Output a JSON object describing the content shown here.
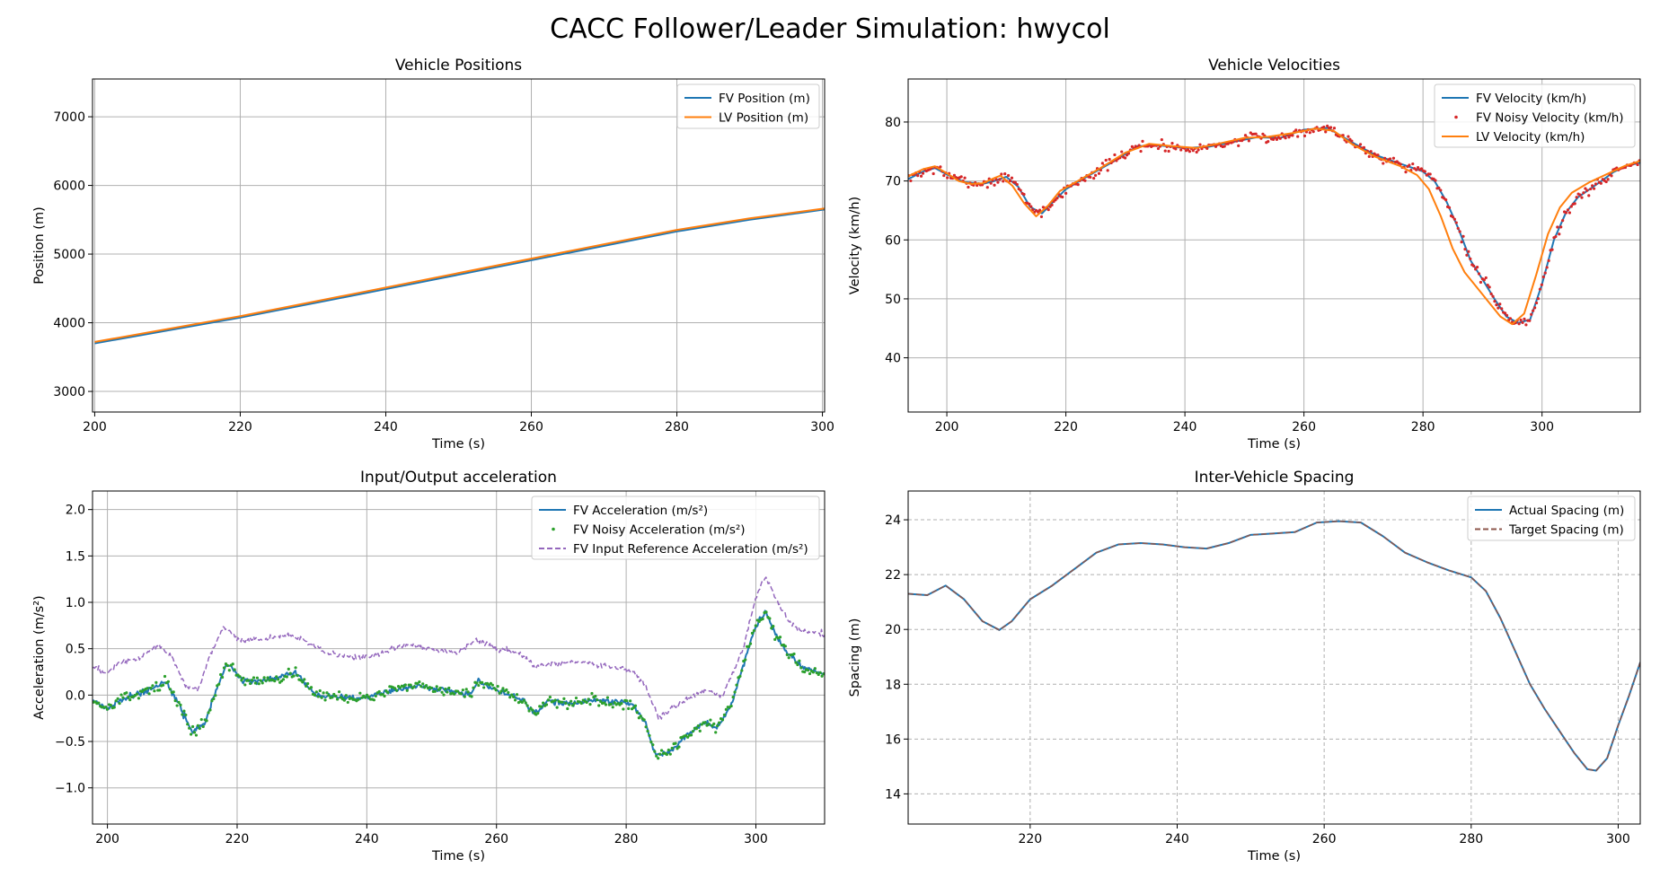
{
  "figure": {
    "title": "CACC Follower/Leader Simulation: hwycol"
  },
  "colors": {
    "blue": "#1f77b4",
    "orange": "#ff7f0e",
    "red": "#d62728",
    "green": "#2ca02c",
    "purple": "#9467bd",
    "brown": "#8c564b",
    "grid": "#b0b0b0"
  },
  "chart_data": [
    {
      "type": "line",
      "title": "Vehicle Positions",
      "xlabel": "Time (s)",
      "ylabel": "Position (m)",
      "xlim": [
        199.7,
        300.3
      ],
      "ylim": [
        2700,
        7550
      ],
      "xticks": [
        200,
        220,
        240,
        260,
        280,
        300
      ],
      "yticks": [
        3000,
        4000,
        5000,
        6000,
        7000
      ],
      "grid": "solid",
      "legend": "top-right",
      "series": [
        {
          "name": "FV Position (m)",
          "color": "#1f77b4",
          "style": "solid",
          "x": [
            200,
            220,
            240,
            260,
            280,
            290,
            300.3
          ],
          "y": [
            3700,
            4075,
            4490,
            4910,
            5330,
            5500,
            5650
          ]
        },
        {
          "name": "LV Position (m)",
          "color": "#ff7f0e",
          "style": "solid",
          "x": [
            200,
            220,
            240,
            260,
            280,
            290,
            300.3
          ],
          "y": [
            3721,
            4096,
            4513,
            4934,
            5352,
            5520,
            5664
          ]
        }
      ]
    },
    {
      "type": "line",
      "title": "Vehicle Velocities",
      "xlabel": "Time (s)",
      "ylabel": "Velocity (km/h)",
      "xlim": [
        193.5,
        316.5
      ],
      "ylim": [
        30.8,
        87.3
      ],
      "xticks": [
        200,
        220,
        240,
        260,
        280,
        300
      ],
      "yticks": [
        40,
        50,
        60,
        70,
        80
      ],
      "grid": "solid",
      "legend": "top-right",
      "series": [
        {
          "name": "FV Velocity (km/h)",
          "color": "#1f77b4",
          "style": "solid",
          "x": [
            193.5,
            196,
            198,
            200,
            203,
            206,
            208,
            210,
            212,
            214,
            216,
            218,
            220,
            224,
            228,
            232,
            236,
            240,
            244,
            248,
            252,
            256,
            260,
            264,
            268,
            272,
            276,
            280,
            282,
            284,
            286,
            288,
            290,
            292,
            294,
            296,
            298,
            300,
            302,
            304,
            306,
            308,
            310,
            312,
            314,
            316.5
          ],
          "y": [
            70.3,
            71.6,
            72.2,
            71.1,
            69.8,
            69.5,
            70.0,
            70.7,
            69.0,
            65.6,
            64.5,
            66.6,
            68.6,
            71.0,
            73.3,
            75.9,
            76.0,
            75.6,
            75.8,
            76.6,
            77.4,
            77.3,
            78.7,
            79.0,
            76.6,
            74.4,
            73.0,
            71.6,
            69.9,
            66.4,
            61.8,
            56.5,
            53.3,
            50.0,
            47.0,
            45.9,
            46.5,
            52.5,
            60.0,
            64.6,
            67.2,
            68.6,
            70.0,
            71.5,
            72.5,
            73.1
          ]
        },
        {
          "name": "FV Noisy Velocity (km/h)",
          "color": "#d62728",
          "style": "points",
          "x": [
            193.5,
            196,
            198,
            200,
            203,
            206,
            208,
            210,
            212,
            214,
            216,
            218,
            220,
            224,
            228,
            232,
            236,
            240,
            244,
            248,
            252,
            256,
            260,
            264,
            268,
            272,
            276,
            280,
            282,
            284,
            286,
            288,
            290,
            292,
            294,
            296,
            298,
            300,
            302,
            304,
            306,
            308,
            310,
            312,
            314,
            316.5
          ],
          "y": [
            70.3,
            71.6,
            72.2,
            71.1,
            69.8,
            69.5,
            70.0,
            70.7,
            69.0,
            65.6,
            64.5,
            66.6,
            68.6,
            71.0,
            73.3,
            75.9,
            76.0,
            75.6,
            75.8,
            76.6,
            77.4,
            77.3,
            78.7,
            79.0,
            76.6,
            74.4,
            73.0,
            71.6,
            69.9,
            66.4,
            61.8,
            56.5,
            53.3,
            50.0,
            47.0,
            45.9,
            46.5,
            52.5,
            60.0,
            64.6,
            67.2,
            68.6,
            70.0,
            71.5,
            72.5,
            73.1
          ]
        },
        {
          "name": "LV Velocity (km/h)",
          "color": "#ff7f0e",
          "style": "solid",
          "x": [
            193.5,
            196,
            198,
            200,
            202,
            204,
            206,
            208,
            209,
            211,
            213,
            215,
            217,
            219,
            222,
            226,
            230,
            234,
            238,
            242,
            246,
            250,
            254,
            258,
            262,
            265,
            268,
            272,
            276,
            279,
            281,
            283,
            285,
            287,
            289,
            291,
            293,
            295,
            297,
            299,
            301,
            303,
            305,
            308,
            311,
            314,
            316.5
          ],
          "y": [
            70.8,
            72.0,
            72.5,
            71.3,
            70.0,
            69.5,
            69.6,
            70.5,
            70.9,
            69.2,
            66.2,
            64.0,
            65.8,
            68.3,
            70.0,
            72.3,
            74.8,
            76.3,
            75.9,
            75.6,
            76.4,
            77.3,
            77.5,
            78.1,
            78.9,
            78.5,
            76.3,
            74.1,
            72.6,
            71.0,
            68.6,
            64.0,
            58.5,
            54.5,
            52.0,
            49.5,
            47.0,
            45.7,
            47.5,
            54.0,
            61.0,
            65.5,
            68.0,
            69.8,
            71.2,
            72.6,
            73.4
          ]
        }
      ]
    },
    {
      "type": "line",
      "title": "Input/Output acceleration",
      "xlabel": "Time (s)",
      "ylabel": "Acceleration (m/s²)",
      "xlim": [
        197.7,
        310.6
      ],
      "ylim": [
        -1.39,
        2.2
      ],
      "xticks": [
        200,
        220,
        240,
        260,
        280,
        300
      ],
      "yticks": [
        -1.0,
        -0.5,
        0.0,
        0.5,
        1.0,
        1.5,
        2.0
      ],
      "grid": "solid",
      "legend": "top-right",
      "series": [
        {
          "name": "FV Acceleration (m/s²)",
          "color": "#1f77b4",
          "style": "solid",
          "x": [
            197.7,
            200,
            202,
            204,
            206,
            208,
            209,
            211,
            213,
            215,
            217,
            218.5,
            221,
            224,
            227,
            229,
            232,
            236,
            240,
            244,
            248,
            252,
            256,
            257,
            260,
            264,
            266,
            268,
            271,
            275,
            279,
            281,
            283,
            284.5,
            287,
            289,
            292,
            294,
            296,
            298,
            300,
            301.5,
            303,
            305,
            307,
            310.6
          ],
          "y": [
            -0.05,
            -0.15,
            -0.05,
            0.0,
            0.05,
            0.1,
            0.15,
            -0.1,
            -0.4,
            -0.3,
            0.1,
            0.35,
            0.15,
            0.15,
            0.2,
            0.25,
            0.0,
            -0.02,
            -0.03,
            0.05,
            0.1,
            0.05,
            0.0,
            0.15,
            0.05,
            -0.05,
            -0.2,
            -0.05,
            -0.1,
            -0.05,
            -0.08,
            -0.1,
            -0.3,
            -0.65,
            -0.6,
            -0.45,
            -0.3,
            -0.35,
            -0.15,
            0.3,
            0.75,
            0.9,
            0.65,
            0.45,
            0.3,
            0.22
          ]
        },
        {
          "name": "FV Noisy Acceleration (m/s²)",
          "color": "#2ca02c",
          "style": "points",
          "x": [
            197.7,
            200,
            202,
            204,
            206,
            208,
            209,
            211,
            213,
            215,
            217,
            218.5,
            221,
            224,
            227,
            229,
            232,
            236,
            240,
            244,
            248,
            252,
            256,
            257,
            260,
            264,
            266,
            268,
            271,
            275,
            279,
            281,
            283,
            284.5,
            287,
            289,
            292,
            294,
            296,
            298,
            300,
            301.5,
            303,
            305,
            307,
            310.6
          ],
          "y": [
            -0.05,
            -0.15,
            -0.05,
            0.0,
            0.05,
            0.1,
            0.15,
            -0.1,
            -0.4,
            -0.3,
            0.1,
            0.35,
            0.15,
            0.15,
            0.2,
            0.25,
            0.0,
            -0.02,
            -0.03,
            0.05,
            0.1,
            0.05,
            0.0,
            0.15,
            0.05,
            -0.05,
            -0.2,
            -0.05,
            -0.1,
            -0.05,
            -0.08,
            -0.1,
            -0.3,
            -0.65,
            -0.6,
            -0.45,
            -0.3,
            -0.35,
            -0.15,
            0.3,
            0.75,
            0.9,
            0.65,
            0.45,
            0.3,
            0.22
          ]
        },
        {
          "name": "FV Input Reference Acceleration (m/s²)",
          "color": "#9467bd",
          "style": "dashed",
          "x": [
            197.7,
            200,
            202,
            205,
            208,
            210,
            212,
            214,
            216,
            218,
            220,
            224,
            228,
            230,
            234,
            238,
            242,
            246,
            250,
            254,
            257,
            260,
            264,
            266,
            270,
            274,
            278,
            281,
            283,
            285,
            288,
            292,
            295,
            298,
            300,
            301.5,
            303,
            305,
            307,
            310.6
          ],
          "y": [
            0.3,
            0.25,
            0.35,
            0.4,
            0.55,
            0.4,
            0.1,
            0.05,
            0.45,
            0.75,
            0.6,
            0.6,
            0.65,
            0.6,
            0.45,
            0.4,
            0.45,
            0.55,
            0.5,
            0.45,
            0.6,
            0.5,
            0.45,
            0.3,
            0.35,
            0.35,
            0.3,
            0.25,
            0.1,
            -0.25,
            -0.1,
            0.05,
            0.0,
            0.5,
            1.05,
            1.28,
            1.05,
            0.8,
            0.7,
            0.65
          ]
        }
      ]
    },
    {
      "type": "line",
      "title": "Inter-Vehicle Spacing",
      "xlabel": "Time (s)",
      "ylabel": "Spacing (m)",
      "xlim": [
        203.4,
        303.0
      ],
      "ylim": [
        12.9,
        25.05
      ],
      "xticks": [
        220,
        240,
        260,
        280,
        300
      ],
      "yticks": [
        14,
        16,
        18,
        20,
        22,
        24
      ],
      "grid": "dashed",
      "legend": "top-right",
      "series": [
        {
          "name": "Actual Spacing (m)",
          "color": "#1f77b4",
          "style": "solid",
          "x": [
            203.4,
            206,
            208.5,
            211,
            213.5,
            215.8,
            217.5,
            220,
            223,
            226,
            229,
            232,
            235,
            238,
            241,
            244,
            247,
            250,
            253,
            256,
            259,
            262,
            265,
            268,
            271,
            274,
            277,
            280,
            282,
            284,
            286,
            288,
            290,
            292,
            294,
            295.8,
            297,
            298.5,
            300,
            301.5,
            303
          ],
          "y": [
            21.3,
            21.25,
            21.6,
            21.1,
            20.3,
            19.98,
            20.3,
            21.1,
            21.6,
            22.2,
            22.8,
            23.1,
            23.15,
            23.1,
            23.0,
            22.95,
            23.15,
            23.45,
            23.5,
            23.55,
            23.9,
            23.95,
            23.9,
            23.4,
            22.8,
            22.45,
            22.15,
            21.9,
            21.4,
            20.4,
            19.2,
            18.0,
            17.1,
            16.3,
            15.5,
            14.9,
            14.85,
            15.3,
            16.5,
            17.6,
            18.8
          ]
        },
        {
          "name": "Target Spacing (m)",
          "color": "#8c564b",
          "style": "dashed",
          "x": [
            203.4,
            206,
            208.5,
            211,
            213.5,
            215.8,
            217.5,
            220,
            223,
            226,
            229,
            232,
            235,
            238,
            241,
            244,
            247,
            250,
            253,
            256,
            259,
            262,
            265,
            268,
            271,
            274,
            277,
            280,
            282,
            284,
            286,
            288,
            290,
            292,
            294,
            295.8,
            297,
            298.5,
            300,
            301.5,
            303
          ],
          "y": [
            21.3,
            21.25,
            21.6,
            21.1,
            20.3,
            19.98,
            20.3,
            21.1,
            21.6,
            22.2,
            22.8,
            23.1,
            23.15,
            23.1,
            23.0,
            22.95,
            23.15,
            23.45,
            23.5,
            23.55,
            23.9,
            23.95,
            23.9,
            23.4,
            22.8,
            22.45,
            22.15,
            21.9,
            21.4,
            20.4,
            19.2,
            18.0,
            17.1,
            16.3,
            15.5,
            14.9,
            14.85,
            15.3,
            16.5,
            17.6,
            18.8
          ]
        }
      ]
    }
  ]
}
